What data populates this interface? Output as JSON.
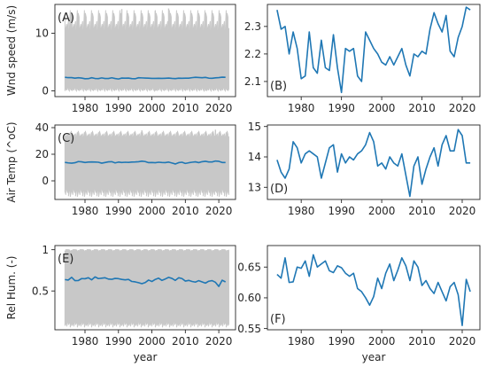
{
  "colors": {
    "raw": "#c8c8c8",
    "mean": "#1f77b4",
    "frame": "#262626"
  },
  "chart_data": [
    {
      "id": "A",
      "type": "line",
      "label": "(A)",
      "ylabel": "Wnd speed (m/s)",
      "xlabel": "",
      "xlim": [
        1971,
        2025
      ],
      "ylim": [
        -1,
        15
      ],
      "xticks": [
        1980,
        1990,
        2000,
        2010,
        2020
      ],
      "yticks": [
        0,
        10
      ],
      "raw_band": {
        "x": [
          1974,
          2023
        ],
        "pattern_min": [
          0.0,
          0.3,
          0.1,
          0.5,
          0.2,
          0.0,
          0.4,
          0.1
        ],
        "pattern_max": [
          10.5,
          12.8,
          11.2,
          14.0,
          10.9,
          12.1,
          13.5,
          11.6
        ],
        "peak_spikes": [
          [
            1991,
            14.2
          ],
          [
            2001,
            13.9
          ],
          [
            2005,
            14.3
          ],
          [
            2016,
            13.6
          ]
        ]
      },
      "series": [
        {
          "x": [
            1974,
            1975,
            1976,
            1977,
            1978,
            1979,
            1980,
            1981,
            1982,
            1983,
            1984,
            1985,
            1986,
            1987,
            1988,
            1989,
            1990,
            1991,
            1992,
            1993,
            1994,
            1995,
            1996,
            1997,
            1998,
            1999,
            2000,
            2001,
            2002,
            2003,
            2004,
            2005,
            2006,
            2007,
            2008,
            2009,
            2010,
            2011,
            2012,
            2013,
            2014,
            2015,
            2016,
            2017,
            2018,
            2019,
            2020,
            2021,
            2022
          ],
          "y": [
            2.36,
            2.29,
            2.3,
            2.2,
            2.28,
            2.22,
            2.11,
            2.12,
            2.28,
            2.15,
            2.13,
            2.25,
            2.15,
            2.14,
            2.27,
            2.15,
            2.06,
            2.22,
            2.21,
            2.22,
            2.12,
            2.1,
            2.28,
            2.25,
            2.22,
            2.2,
            2.17,
            2.16,
            2.19,
            2.16,
            2.19,
            2.22,
            2.16,
            2.12,
            2.2,
            2.19,
            2.21,
            2.2,
            2.29,
            2.35,
            2.31,
            2.28,
            2.34,
            2.21,
            2.19,
            2.26,
            2.3,
            2.37,
            2.36
          ]
        }
      ]
    },
    {
      "id": "B",
      "type": "line",
      "label": "(B)",
      "ylabel": "",
      "xlabel": "",
      "xlim": [
        1971.6,
        2024.4
      ],
      "ylim": [
        2.045,
        2.38
      ],
      "xticks": [
        1980,
        1990,
        2000,
        2010,
        2020
      ],
      "yticks": [
        2.1,
        2.2,
        2.3
      ],
      "series": [
        {
          "x": [
            1974,
            1975,
            1976,
            1977,
            1978,
            1979,
            1980,
            1981,
            1982,
            1983,
            1984,
            1985,
            1986,
            1987,
            1988,
            1989,
            1990,
            1991,
            1992,
            1993,
            1994,
            1995,
            1996,
            1997,
            1998,
            1999,
            2000,
            2001,
            2002,
            2003,
            2004,
            2005,
            2006,
            2007,
            2008,
            2009,
            2010,
            2011,
            2012,
            2013,
            2014,
            2015,
            2016,
            2017,
            2018,
            2019,
            2020,
            2021,
            2022
          ],
          "y": [
            2.36,
            2.29,
            2.3,
            2.2,
            2.28,
            2.22,
            2.11,
            2.12,
            2.28,
            2.15,
            2.13,
            2.25,
            2.15,
            2.14,
            2.27,
            2.15,
            2.06,
            2.22,
            2.21,
            2.22,
            2.12,
            2.1,
            2.28,
            2.25,
            2.22,
            2.2,
            2.17,
            2.16,
            2.19,
            2.16,
            2.19,
            2.22,
            2.16,
            2.12,
            2.2,
            2.19,
            2.21,
            2.2,
            2.29,
            2.35,
            2.31,
            2.28,
            2.34,
            2.21,
            2.19,
            2.26,
            2.3,
            2.37,
            2.36
          ]
        }
      ]
    },
    {
      "id": "C",
      "type": "line",
      "label": "(C)",
      "ylabel": "Air Temp (^oC)",
      "xlabel": "",
      "xlim": [
        1971,
        2025
      ],
      "ylim": [
        -14,
        42
      ],
      "xticks": [
        1980,
        1990,
        2000,
        2010,
        2020
      ],
      "yticks": [
        0,
        20,
        40
      ],
      "raw_band": {
        "x": [
          1974,
          2023
        ],
        "pattern_min": [
          -8.0,
          -10.5,
          -6.5,
          -9.0,
          -11.5,
          -7.5,
          -12.0,
          -8.5
        ],
        "pattern_max": [
          33.0,
          35.0,
          34.0,
          36.5,
          33.5,
          35.5,
          37.5,
          34.5
        ],
        "peak_spikes": [
          [
            1997,
            38.0
          ],
          [
            2019,
            38.5
          ]
        ]
      },
      "series": [
        {
          "x": [
            1974,
            1975,
            1976,
            1977,
            1978,
            1979,
            1980,
            1981,
            1982,
            1983,
            1984,
            1985,
            1986,
            1987,
            1988,
            1989,
            1990,
            1991,
            1992,
            1993,
            1994,
            1995,
            1996,
            1997,
            1998,
            1999,
            2000,
            2001,
            2002,
            2003,
            2004,
            2005,
            2006,
            2007,
            2008,
            2009,
            2010,
            2011,
            2012,
            2013,
            2014,
            2015,
            2016,
            2017,
            2018,
            2019,
            2020,
            2021,
            2022
          ],
          "y": [
            13.9,
            13.5,
            13.3,
            13.6,
            14.5,
            14.3,
            13.8,
            14.1,
            14.2,
            14.1,
            14.0,
            13.3,
            13.8,
            14.3,
            14.4,
            13.5,
            14.1,
            13.8,
            14.0,
            13.9,
            14.1,
            14.2,
            14.4,
            14.8,
            14.5,
            13.7,
            13.8,
            13.6,
            14.0,
            13.8,
            13.7,
            14.1,
            13.4,
            12.7,
            13.7,
            14.0,
            13.1,
            13.6,
            14.0,
            14.3,
            13.7,
            14.4,
            14.7,
            14.2,
            14.2,
            14.9,
            14.7,
            13.8,
            13.8
          ]
        }
      ]
    },
    {
      "id": "D",
      "type": "line",
      "label": "(D)",
      "ylabel": "",
      "xlabel": "",
      "xlim": [
        1971.6,
        2024.4
      ],
      "ylim": [
        12.6,
        15.05
      ],
      "xticks": [
        1980,
        1990,
        2000,
        2010,
        2020
      ],
      "yticks": [
        13,
        14,
        15
      ],
      "series": [
        {
          "x": [
            1974,
            1975,
            1976,
            1977,
            1978,
            1979,
            1980,
            1981,
            1982,
            1983,
            1984,
            1985,
            1986,
            1987,
            1988,
            1989,
            1990,
            1991,
            1992,
            1993,
            1994,
            1995,
            1996,
            1997,
            1998,
            1999,
            2000,
            2001,
            2002,
            2003,
            2004,
            2005,
            2006,
            2007,
            2008,
            2009,
            2010,
            2011,
            2012,
            2013,
            2014,
            2015,
            2016,
            2017,
            2018,
            2019,
            2020,
            2021,
            2022
          ],
          "y": [
            13.9,
            13.5,
            13.3,
            13.6,
            14.5,
            14.3,
            13.8,
            14.1,
            14.2,
            14.1,
            14.0,
            13.3,
            13.8,
            14.3,
            14.4,
            13.5,
            14.1,
            13.8,
            14.0,
            13.9,
            14.1,
            14.2,
            14.4,
            14.8,
            14.5,
            13.7,
            13.8,
            13.6,
            14.0,
            13.8,
            13.7,
            14.1,
            13.4,
            12.7,
            13.7,
            14.0,
            13.1,
            13.6,
            14.0,
            14.3,
            13.7,
            14.4,
            14.7,
            14.2,
            14.2,
            14.9,
            14.7,
            13.8,
            13.8
          ]
        }
      ]
    },
    {
      "id": "E",
      "type": "line",
      "label": "(E)",
      "ylabel": "Rel Hum. (-)",
      "xlabel": "year",
      "xlim": [
        1971,
        2025
      ],
      "ylim": [
        0.03,
        1.05
      ],
      "xticks": [
        1980,
        1990,
        2000,
        2010,
        2020
      ],
      "yticks": [
        0.5,
        1.0
      ],
      "raw_band": {
        "x": [
          1974,
          2023
        ],
        "pattern_min": [
          0.08,
          0.1,
          0.07,
          0.12,
          0.09,
          0.11,
          0.06,
          0.1
        ],
        "pattern_max": [
          1.0,
          0.99,
          1.0,
          0.98,
          1.0,
          1.0,
          0.99,
          1.0
        ],
        "peak_spikes": []
      },
      "series": [
        {
          "x": [
            1974,
            1975,
            1976,
            1977,
            1978,
            1979,
            1980,
            1981,
            1982,
            1983,
            1984,
            1985,
            1986,
            1987,
            1988,
            1989,
            1990,
            1991,
            1992,
            1993,
            1994,
            1995,
            1996,
            1997,
            1998,
            1999,
            2000,
            2001,
            2002,
            2003,
            2004,
            2005,
            2006,
            2007,
            2008,
            2009,
            2010,
            2011,
            2012,
            2013,
            2014,
            2015,
            2016,
            2017,
            2018,
            2019,
            2020,
            2021,
            2022
          ],
          "y": [
            0.638,
            0.632,
            0.665,
            0.625,
            0.626,
            0.65,
            0.648,
            0.66,
            0.635,
            0.67,
            0.65,
            0.655,
            0.66,
            0.644,
            0.641,
            0.652,
            0.649,
            0.64,
            0.635,
            0.64,
            0.615,
            0.61,
            0.6,
            0.588,
            0.602,
            0.632,
            0.615,
            0.64,
            0.655,
            0.628,
            0.645,
            0.665,
            0.652,
            0.628,
            0.66,
            0.65,
            0.62,
            0.628,
            0.615,
            0.607,
            0.625,
            0.61,
            0.595,
            0.618,
            0.625,
            0.605,
            0.555,
            0.63,
            0.61
          ]
        }
      ]
    },
    {
      "id": "F",
      "type": "line",
      "label": "(F)",
      "ylabel": "",
      "xlabel": "year",
      "xlim": [
        1971.6,
        2024.4
      ],
      "ylim": [
        0.548,
        0.685
      ],
      "xticks": [
        1980,
        1990,
        2000,
        2010,
        2020
      ],
      "yticks": [
        0.55,
        0.6,
        0.65
      ],
      "tick_format": 2,
      "series": [
        {
          "x": [
            1974,
            1975,
            1976,
            1977,
            1978,
            1979,
            1980,
            1981,
            1982,
            1983,
            1984,
            1985,
            1986,
            1987,
            1988,
            1989,
            1990,
            1991,
            1992,
            1993,
            1994,
            1995,
            1996,
            1997,
            1998,
            1999,
            2000,
            2001,
            2002,
            2003,
            2004,
            2005,
            2006,
            2007,
            2008,
            2009,
            2010,
            2011,
            2012,
            2013,
            2014,
            2015,
            2016,
            2017,
            2018,
            2019,
            2020,
            2021,
            2022
          ],
          "y": [
            0.638,
            0.632,
            0.665,
            0.625,
            0.626,
            0.65,
            0.648,
            0.66,
            0.635,
            0.67,
            0.65,
            0.655,
            0.66,
            0.644,
            0.641,
            0.652,
            0.649,
            0.64,
            0.635,
            0.64,
            0.615,
            0.61,
            0.6,
            0.588,
            0.602,
            0.632,
            0.615,
            0.64,
            0.655,
            0.628,
            0.645,
            0.665,
            0.652,
            0.628,
            0.66,
            0.65,
            0.62,
            0.628,
            0.615,
            0.607,
            0.625,
            0.61,
            0.595,
            0.618,
            0.625,
            0.605,
            0.555,
            0.63,
            0.61
          ]
        }
      ]
    }
  ]
}
